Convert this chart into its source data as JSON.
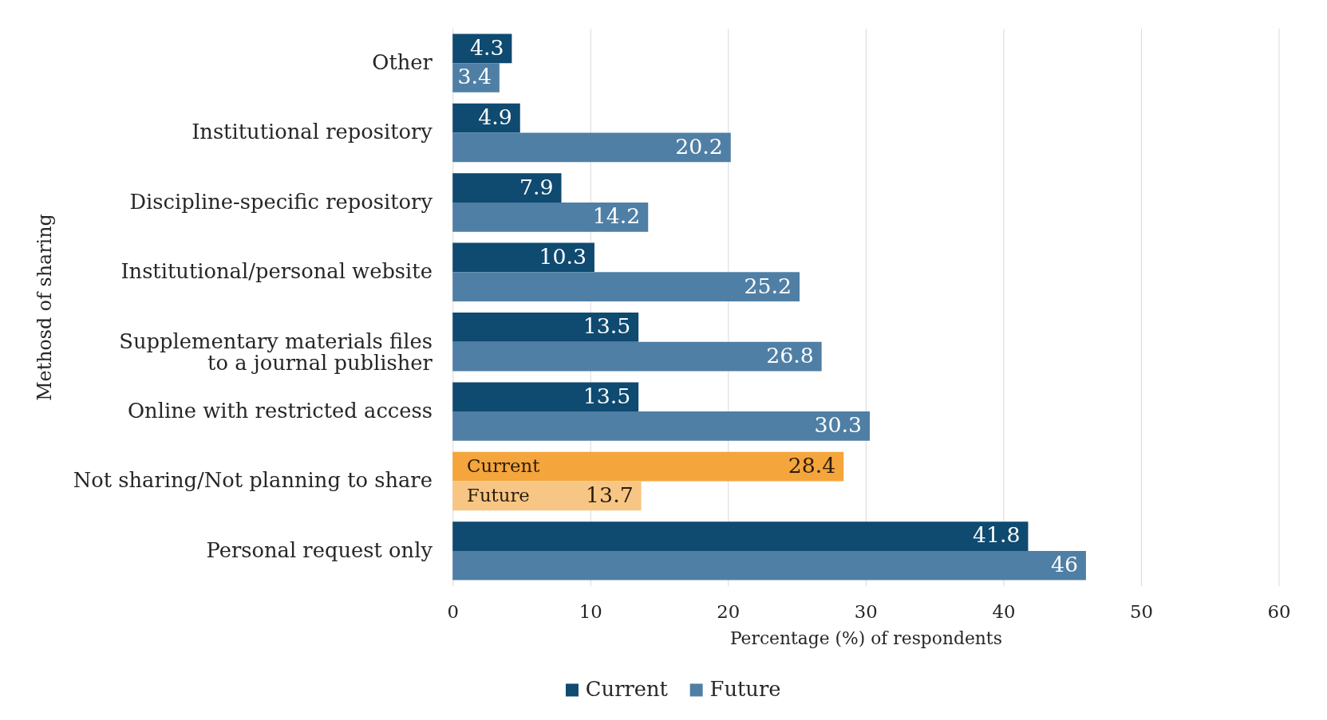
{
  "chart_data": {
    "type": "bar",
    "orientation": "horizontal",
    "xlabel": "Percentage (%) of respondents",
    "ylabel": "Methosd of sharing",
    "categories": [
      "Other",
      "Institutional repository",
      "Discipline-specific repository",
      "Institutional/personal website",
      "Supplementary materials files\nto a journal publisher",
      "Online with restricted access",
      "Not sharing/Not planning to share",
      "Personal request only"
    ],
    "series": [
      {
        "name": "Current",
        "color": "#0f4a70",
        "colors": [
          "#0f4a70",
          "#0f4a70",
          "#0f4a70",
          "#0f4a70",
          "#0f4a70",
          "#0f4a70",
          "#f4a53c",
          "#0f4a70"
        ],
        "values": [
          4.3,
          4.9,
          7.9,
          10.3,
          13.5,
          13.5,
          28.4,
          41.8
        ]
      },
      {
        "name": "Future",
        "color": "#4f7fa5",
        "colors": [
          "#4f7fa5",
          "#4f7fa5",
          "#4f7fa5",
          "#4f7fa5",
          "#4f7fa5",
          "#4f7fa5",
          "#f7c684",
          "#4f7fa5"
        ],
        "values": [
          3.4,
          20.2,
          14.2,
          25.2,
          26.8,
          30.3,
          13.7,
          46
        ]
      }
    ],
    "xlim": [
      0,
      60
    ],
    "xticks": [
      0,
      10,
      20,
      30,
      40,
      50,
      60
    ],
    "grid": "x",
    "legend": "bottom",
    "data_labels": true,
    "annotations": [
      {
        "text": "Current",
        "x": 0,
        "y": "Not sharing/Not planning to share"
      },
      {
        "text": "Future",
        "x": 0,
        "y": "Not sharing/Not planning to share"
      }
    ]
  }
}
